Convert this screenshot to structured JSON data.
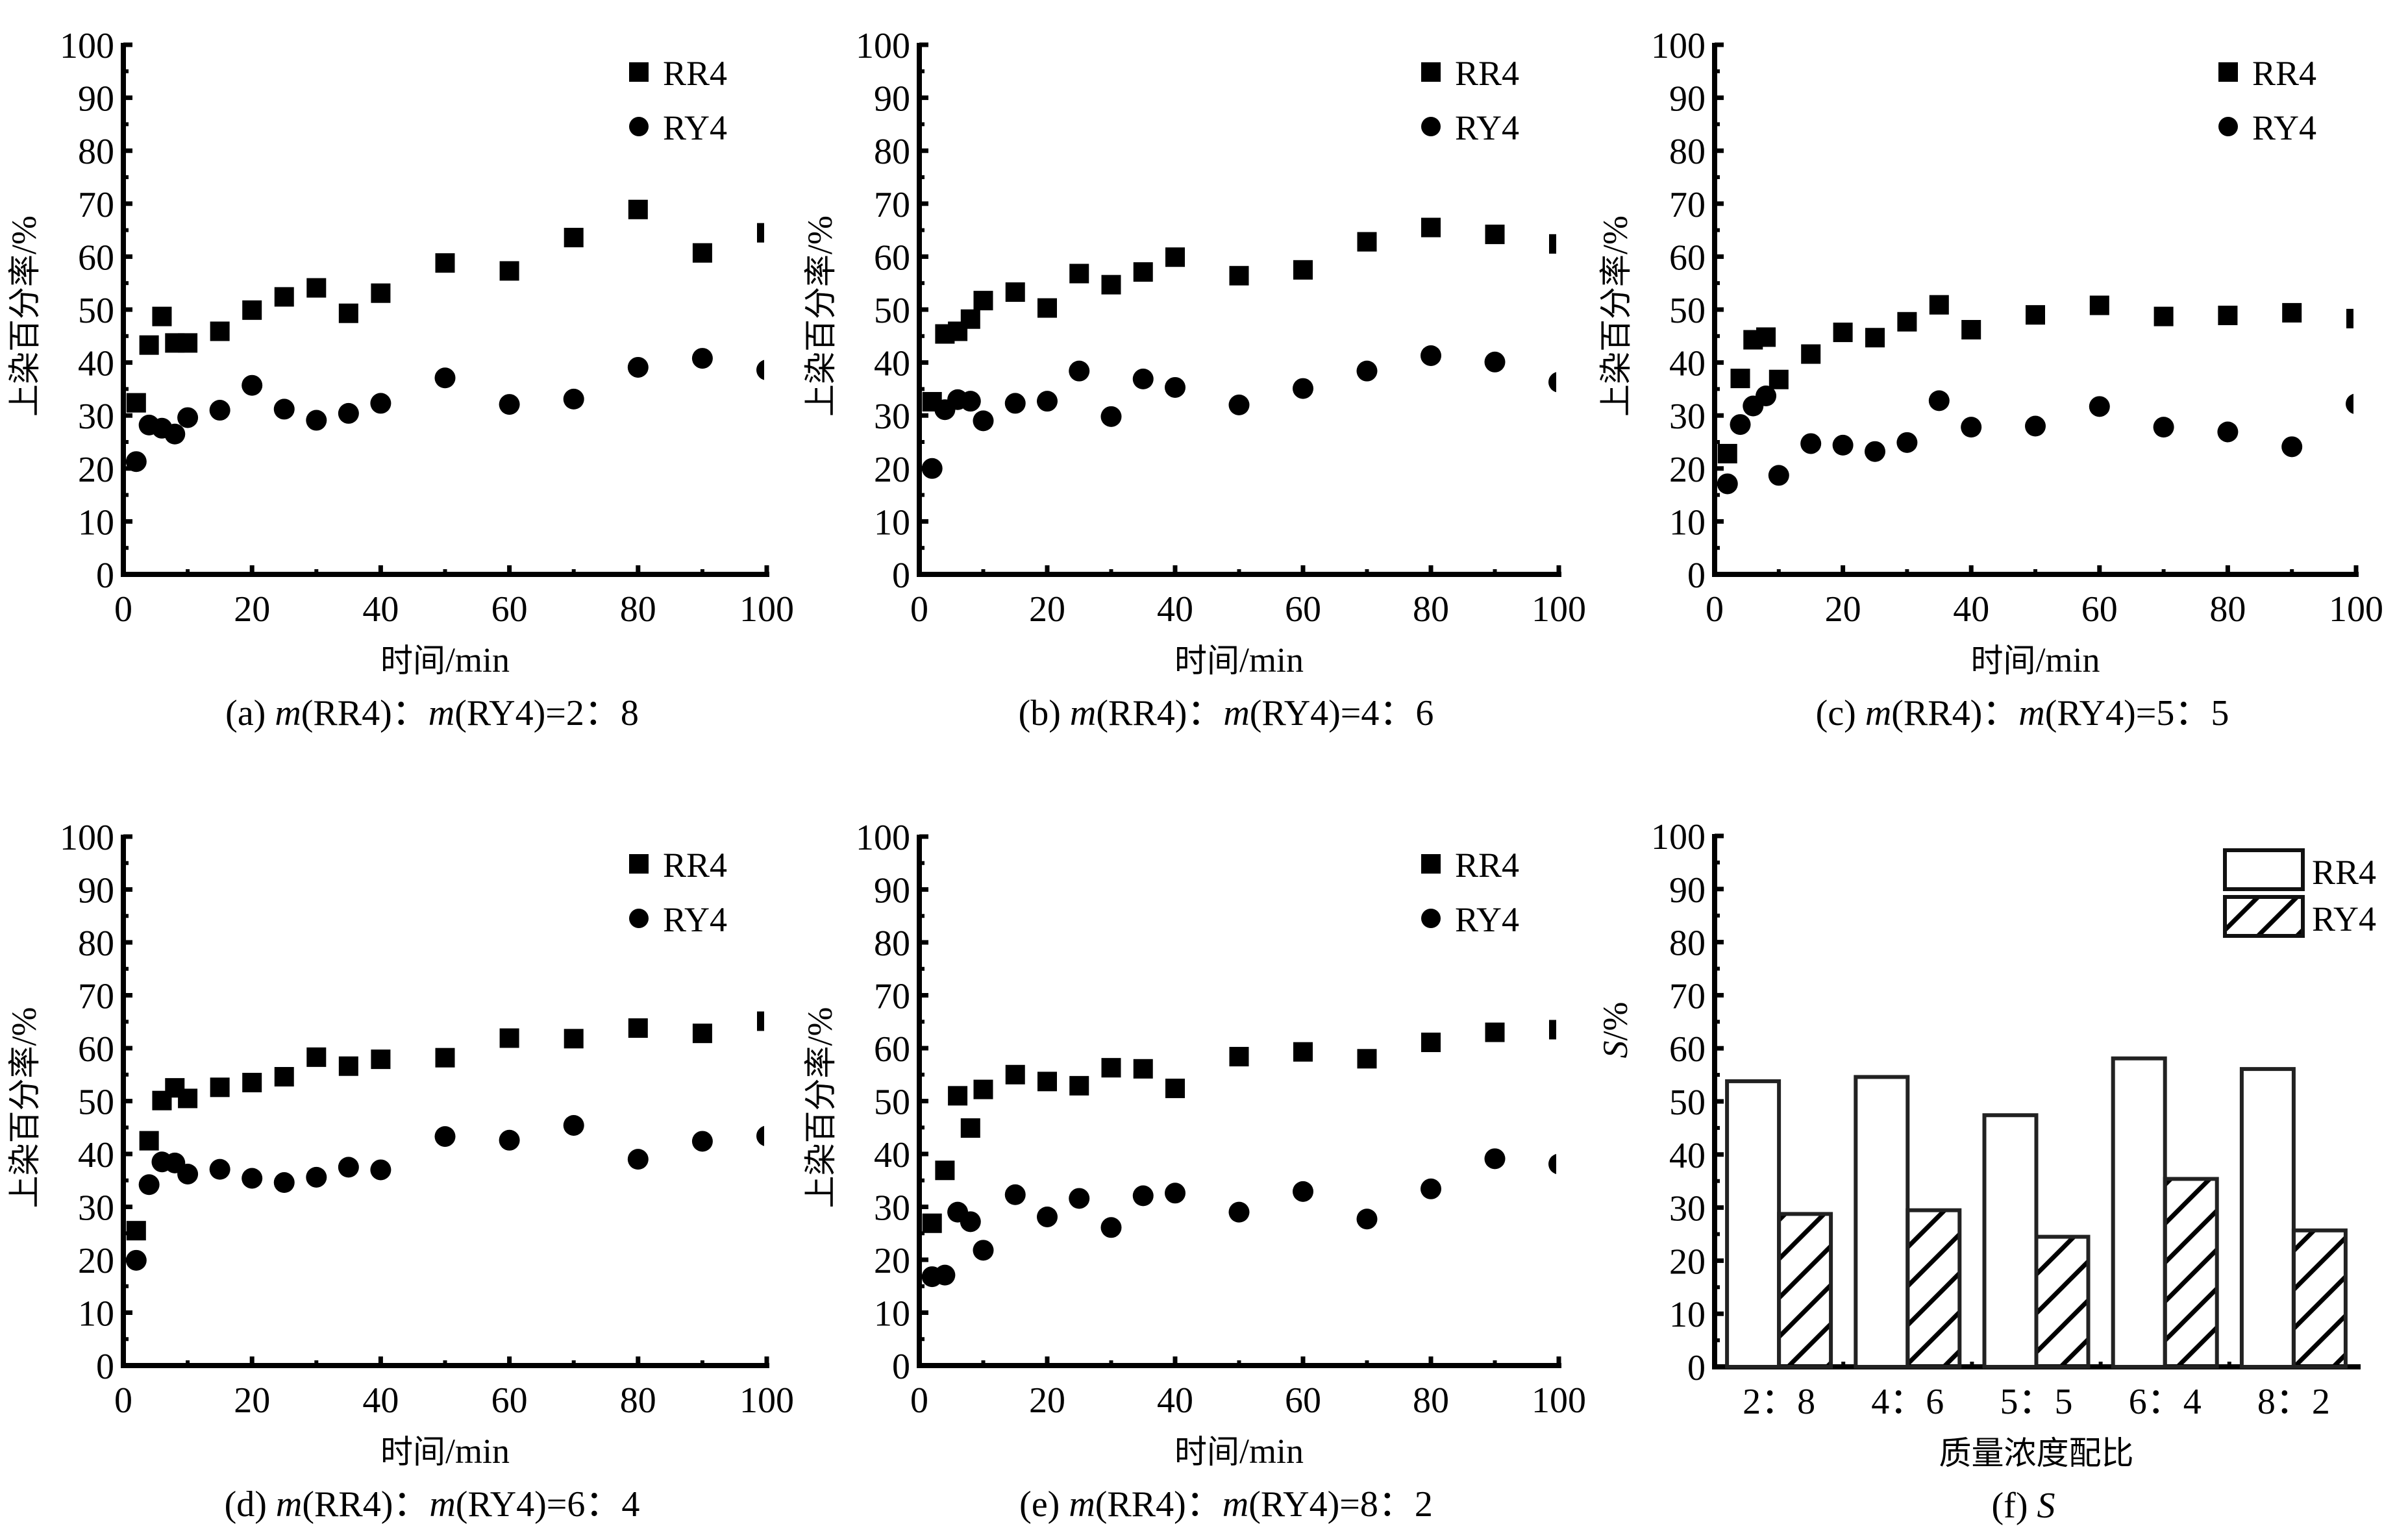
{
  "figure": {
    "colors": {
      "ink": "#000000",
      "background": "#ffffff"
    },
    "marker_legend": {
      "rr4_symbol": "filled-square",
      "ry4_symbol": "filled-circle"
    }
  },
  "chart_data": [
    {
      "id": "a",
      "type": "scatter",
      "caption": {
        "prefix": "(a)",
        "italic": "m",
        "mid1": "(RR4)：",
        "italic2": "m",
        "mid2": "(RY4)=2：8"
      },
      "xlabel": {
        "cn": "时间",
        "en": "/min"
      },
      "ylabel": {
        "cn": "上染百分率",
        "en": "/%"
      },
      "xlim": [
        0,
        100
      ],
      "ylim": [
        0,
        100
      ],
      "xticks": [
        "0",
        "20",
        "40",
        "60",
        "80",
        "100"
      ],
      "yticks": [
        "0",
        "10",
        "20",
        "30",
        "40",
        "50",
        "60",
        "70",
        "80",
        "90",
        "100"
      ],
      "legend": {
        "position": "top-right",
        "entries": [
          "RR4",
          "RY4"
        ]
      },
      "x": [
        2,
        4,
        6,
        8,
        10,
        15,
        20,
        25,
        30,
        35,
        40,
        50,
        60,
        70,
        80,
        90,
        100
      ],
      "series": [
        {
          "name": "RR4",
          "marker": "square",
          "values": [
            32.4,
            43.3,
            48.7,
            43.7,
            43.7,
            45.9,
            49.9,
            52.4,
            54.1,
            49.3,
            53.1,
            58.8,
            57.3,
            63.6,
            68.9,
            60.7,
            64.5
          ]
        },
        {
          "name": "RY4",
          "marker": "circle",
          "values": [
            21.3,
            28.2,
            27.6,
            26.5,
            29.6,
            31.0,
            35.7,
            31.2,
            29.1,
            30.4,
            32.3,
            37.1,
            32.1,
            33.1,
            39.1,
            40.8,
            38.6
          ]
        }
      ]
    },
    {
      "id": "b",
      "type": "scatter",
      "caption": {
        "prefix": "(b)",
        "italic": "m",
        "mid1": "(RR4)：",
        "italic2": "m",
        "mid2": "(RY4)=4：6"
      },
      "xlabel": {
        "cn": "时间",
        "en": "/min"
      },
      "ylabel": {
        "cn": "上染百分率",
        "en": "/%"
      },
      "xlim": [
        0,
        100
      ],
      "ylim": [
        0,
        100
      ],
      "xticks": [
        "0",
        "20",
        "40",
        "60",
        "80",
        "100"
      ],
      "yticks": [
        "0",
        "10",
        "20",
        "30",
        "40",
        "50",
        "60",
        "70",
        "80",
        "90",
        "100"
      ],
      "legend": {
        "position": "top-right",
        "entries": [
          "RR4",
          "RY4"
        ]
      },
      "x": [
        2,
        4,
        6,
        8,
        10,
        15,
        20,
        25,
        30,
        35,
        40,
        50,
        60,
        70,
        80,
        90,
        100
      ],
      "series": [
        {
          "name": "RR4",
          "marker": "square",
          "values": [
            32.6,
            45.4,
            45.9,
            48.2,
            51.7,
            53.3,
            50.3,
            56.8,
            54.7,
            57.1,
            59.9,
            56.4,
            57.5,
            62.8,
            65.5,
            64.2,
            62.4
          ]
        },
        {
          "name": "RY4",
          "marker": "circle",
          "values": [
            20.0,
            31.1,
            33.0,
            32.7,
            29.0,
            32.3,
            32.7,
            38.4,
            29.8,
            36.9,
            35.3,
            32.0,
            35.1,
            38.4,
            41.3,
            40.1,
            36.3
          ]
        }
      ]
    },
    {
      "id": "c",
      "type": "scatter",
      "caption": {
        "prefix": "(c)",
        "italic": "m",
        "mid1": "(RR4)：",
        "italic2": "m",
        "mid2": "(RY4)=5：5"
      },
      "xlabel": {
        "cn": "时间",
        "en": "/min"
      },
      "ylabel": {
        "cn": "上染百分率",
        "en": "/%"
      },
      "xlim": [
        0,
        100
      ],
      "ylim": [
        0,
        100
      ],
      "xticks": [
        "0",
        "20",
        "40",
        "60",
        "80",
        "100"
      ],
      "yticks": [
        "0",
        "10",
        "20",
        "30",
        "40",
        "50",
        "60",
        "70",
        "80",
        "90",
        "100"
      ],
      "legend": {
        "position": "top-right",
        "entries": [
          "RR4",
          "RY4"
        ]
      },
      "x": [
        2,
        4,
        6,
        8,
        10,
        15,
        20,
        25,
        30,
        35,
        40,
        50,
        60,
        70,
        80,
        90,
        100
      ],
      "series": [
        {
          "name": "RR4",
          "marker": "square",
          "values": [
            22.8,
            37.0,
            44.3,
            44.8,
            36.8,
            41.6,
            45.7,
            44.7,
            47.7,
            50.9,
            46.2,
            49.0,
            50.8,
            48.7,
            48.9,
            49.4,
            48.3
          ]
        },
        {
          "name": "RY4",
          "marker": "circle",
          "values": [
            17.1,
            28.3,
            31.8,
            33.7,
            18.7,
            24.7,
            24.4,
            23.2,
            24.9,
            32.8,
            27.8,
            28.0,
            31.7,
            27.8,
            26.9,
            24.1,
            32.2
          ]
        }
      ]
    },
    {
      "id": "d",
      "type": "scatter",
      "caption": {
        "prefix": "(d)",
        "italic": "m",
        "mid1": "(RR4)：",
        "italic2": "m",
        "mid2": "(RY4)=6：4"
      },
      "xlabel": {
        "cn": "时间",
        "en": "/min"
      },
      "ylabel": {
        "cn": "上染百分率",
        "en": "/%"
      },
      "xlim": [
        0,
        100
      ],
      "ylim": [
        0,
        100
      ],
      "xticks": [
        "0",
        "20",
        "40",
        "60",
        "80",
        "100"
      ],
      "yticks": [
        "0",
        "10",
        "20",
        "30",
        "40",
        "50",
        "60",
        "70",
        "80",
        "90",
        "100"
      ],
      "legend": {
        "position": "top-right",
        "entries": [
          "RR4",
          "RY4"
        ]
      },
      "x": [
        2,
        4,
        6,
        8,
        10,
        15,
        20,
        25,
        30,
        35,
        40,
        50,
        60,
        70,
        80,
        90,
        100
      ],
      "series": [
        {
          "name": "RR4",
          "marker": "square",
          "values": [
            25.5,
            42.5,
            50.1,
            52.5,
            50.5,
            52.6,
            53.5,
            54.6,
            58.3,
            56.6,
            57.9,
            58.2,
            61.9,
            61.8,
            63.8,
            62.8,
            65.1
          ]
        },
        {
          "name": "RY4",
          "marker": "circle",
          "values": [
            19.9,
            34.2,
            38.5,
            38.3,
            36.2,
            37.1,
            35.4,
            34.6,
            35.6,
            37.5,
            37.0,
            43.3,
            42.6,
            45.4,
            39.0,
            42.4,
            43.4
          ]
        }
      ]
    },
    {
      "id": "e",
      "type": "scatter",
      "caption": {
        "prefix": "(e)",
        "italic": "m",
        "mid1": "(RR4)：",
        "italic2": "m",
        "mid2": "(RY4)=8：2"
      },
      "xlabel": {
        "cn": "时间",
        "en": "/min"
      },
      "ylabel": {
        "cn": "上染百分率",
        "en": "/%"
      },
      "xlim": [
        0,
        100
      ],
      "ylim": [
        0,
        100
      ],
      "xticks": [
        "0",
        "20",
        "40",
        "60",
        "80",
        "100"
      ],
      "yticks": [
        "0",
        "10",
        "20",
        "30",
        "40",
        "50",
        "60",
        "70",
        "80",
        "90",
        "100"
      ],
      "legend": {
        "position": "top-right",
        "entries": [
          "RR4",
          "RY4"
        ]
      },
      "x": [
        2,
        4,
        6,
        8,
        10,
        15,
        20,
        25,
        30,
        35,
        40,
        50,
        60,
        70,
        80,
        90,
        100
      ],
      "series": [
        {
          "name": "RR4",
          "marker": "square",
          "values": [
            26.9,
            36.9,
            51.0,
            44.9,
            52.2,
            55.0,
            53.7,
            52.9,
            56.3,
            56.1,
            52.4,
            58.4,
            59.3,
            58.0,
            61.1,
            63.0,
            63.5
          ]
        },
        {
          "name": "RY4",
          "marker": "circle",
          "values": [
            16.8,
            17.1,
            29.0,
            27.2,
            21.8,
            32.3,
            28.1,
            31.6,
            26.1,
            32.1,
            32.6,
            29.0,
            32.9,
            27.7,
            33.4,
            39.1,
            38.1
          ]
        }
      ]
    },
    {
      "id": "f",
      "type": "bar",
      "caption": {
        "prefix": "(f)",
        "italic": "S",
        "mid1": "",
        "italic2": "",
        "mid2": ""
      },
      "xlabel": {
        "cn": "质量浓度配比",
        "en": ""
      },
      "ylabel": {
        "italic": "S",
        "en": "/%"
      },
      "ylim": [
        0,
        100
      ],
      "yticks": [
        "0",
        "10",
        "20",
        "30",
        "40",
        "50",
        "60",
        "70",
        "80",
        "90",
        "100"
      ],
      "categories": [
        "2：8",
        "4：6",
        "5：5",
        "6：4",
        "8：2"
      ],
      "legend": {
        "position": "top-right",
        "entries": [
          "RR4",
          "RY4"
        ]
      },
      "series": [
        {
          "name": "RR4",
          "fill": "open",
          "values": [
            53.8,
            54.6,
            47.4,
            58.1,
            56.1
          ]
        },
        {
          "name": "RY4",
          "fill": "hatched",
          "values": [
            28.8,
            29.5,
            24.5,
            35.4,
            25.7
          ]
        }
      ]
    }
  ]
}
